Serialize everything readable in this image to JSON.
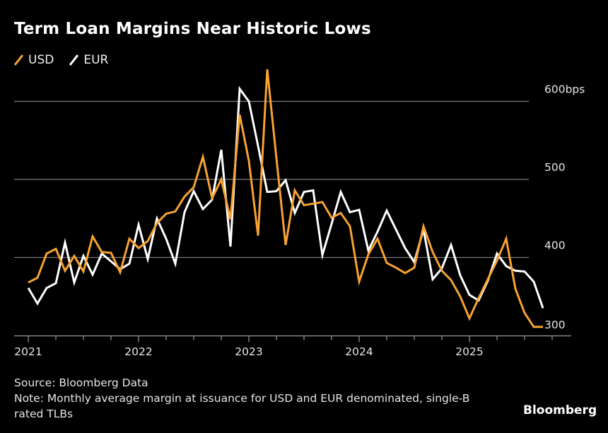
{
  "title": "Term Loan Margins Near Historic Lows",
  "legend": [
    {
      "label": "USD",
      "color": "#f7a233"
    },
    {
      "label": "EUR",
      "color": "#ffffff"
    }
  ],
  "footer": {
    "source": "Source: Bloomberg Data",
    "note_line1": "Note: Monthly average margin at issuance for USD and EUR denominated, single-B",
    "note_line2": "rated TLBs"
  },
  "logo": "Bloomberg",
  "colors": {
    "background": "#000000",
    "usd": "#f7a233",
    "eur": "#ffffff",
    "grid": "#7a7a7a",
    "axis": "#9a9a9a"
  },
  "chart_data": {
    "type": "line",
    "title": "Term Loan Margins Near Historic Lows",
    "xlabel": "",
    "ylabel": "bps",
    "x_start": "2021-01",
    "x_end": "2025-09",
    "x_frequency": "monthly",
    "xticks": [
      "2021",
      "2022",
      "2023",
      "2024",
      "2025"
    ],
    "xlim": [
      "2021-01",
      "2026-01"
    ],
    "yticks": [
      {
        "value": 300,
        "label": "300"
      },
      {
        "value": 400,
        "label": "400"
      },
      {
        "value": 500,
        "label": "500"
      },
      {
        "value": 600,
        "label": "600bps"
      }
    ],
    "ylim": [
      300,
      650
    ],
    "grid": true,
    "legend_position": "top-left",
    "series": [
      {
        "name": "USD",
        "color": "#f7a233",
        "values": [
          368,
          374,
          405,
          411,
          383,
          402,
          382,
          427,
          407,
          406,
          381,
          424,
          412,
          421,
          444,
          456,
          459,
          478,
          490,
          529,
          476,
          500,
          449,
          583,
          524,
          428,
          641,
          527,
          416,
          486,
          467,
          469,
          471,
          451,
          457,
          440,
          369,
          404,
          424,
          393,
          387,
          380,
          387,
          440,
          407,
          383,
          371,
          350,
          322,
          348,
          372,
          396,
          424,
          360,
          329,
          311,
          311
        ]
      },
      {
        "name": "EUR",
        "color": "#ffffff",
        "values": [
          361,
          341,
          361,
          367,
          419,
          368,
          402,
          378,
          405,
          395,
          385,
          392,
          442,
          398,
          450,
          424,
          392,
          458,
          485,
          462,
          474,
          538,
          414,
          616,
          600,
          543,
          484,
          485,
          499,
          457,
          484,
          486,
          403,
          443,
          484,
          458,
          461,
          409,
          433,
          460,
          436,
          412,
          394,
          436,
          372,
          386,
          416,
          377,
          352,
          345,
          370,
          405,
          389,
          383,
          382,
          369,
          335
        ]
      }
    ]
  }
}
